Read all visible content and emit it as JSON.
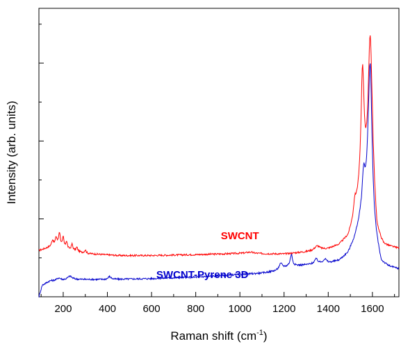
{
  "chart_data": {
    "type": "line",
    "title": "",
    "xlabel": "Raman shift (cm",
    "xlabel_sup": "-1",
    "xlabel_close": ")",
    "ylabel": "Intensity (arb. units)",
    "xlim": [
      90,
      1720
    ],
    "ylim": [
      0,
      1
    ],
    "x_ticks": [
      200,
      400,
      600,
      800,
      1000,
      1200,
      1400,
      1600
    ],
    "x_minor_step": 100,
    "y_major_ticks": [
      0,
      0.27,
      0.54,
      0.81
    ],
    "y_minor_step": 0.135,
    "y_tick_labels_shown": false,
    "grid": false,
    "legend": "none",
    "colors": {
      "SWCNT": "#ff0000",
      "SWCNT-Pyrene 3D": "#0000cc",
      "axes": "#000000"
    },
    "series": [
      {
        "name": "SWCNT",
        "color": "#ff0000",
        "label_at": [
          1000,
          0.2
        ],
        "baseline": [
          [
            90,
            0.16
          ],
          [
            150,
            0.175
          ],
          [
            250,
            0.16
          ],
          [
            300,
            0.15
          ],
          [
            450,
            0.143
          ],
          [
            600,
            0.143
          ],
          [
            800,
            0.146
          ],
          [
            1000,
            0.15
          ],
          [
            1200,
            0.148
          ],
          [
            1300,
            0.155
          ],
          [
            1400,
            0.165
          ],
          [
            1450,
            0.178
          ],
          [
            1490,
            0.205
          ],
          [
            1510,
            0.25
          ],
          [
            1530,
            0.31
          ],
          [
            1560,
            0.39
          ],
          [
            1600,
            0.36
          ],
          [
            1620,
            0.2
          ],
          [
            1650,
            0.17
          ],
          [
            1720,
            0.165
          ]
        ],
        "peaks": [
          [
            1555,
            0.38,
            8
          ],
          [
            1590,
            0.52,
            11
          ],
          [
            1520,
            0.04,
            6
          ],
          [
            1350,
            0.015,
            14
          ],
          [
            152,
            0.02,
            5
          ],
          [
            168,
            0.03,
            5
          ],
          [
            183,
            0.05,
            5
          ],
          [
            200,
            0.035,
            4
          ],
          [
            215,
            0.025,
            4
          ],
          [
            240,
            0.02,
            4
          ],
          [
            262,
            0.013,
            4
          ],
          [
            300,
            0.012,
            5
          ],
          [
            1045,
            0.005,
            20
          ]
        ]
      },
      {
        "name": "SWCNT-Pyrene 3D",
        "color": "#0000cc",
        "label_at": [
          830,
          0.065
        ],
        "baseline": [
          [
            90,
            0.0
          ],
          [
            105,
            0.04
          ],
          [
            140,
            0.055
          ],
          [
            250,
            0.06
          ],
          [
            400,
            0.06
          ],
          [
            600,
            0.063
          ],
          [
            800,
            0.068
          ],
          [
            1000,
            0.077
          ],
          [
            1100,
            0.082
          ],
          [
            1170,
            0.09
          ],
          [
            1220,
            0.105
          ],
          [
            1300,
            0.11
          ],
          [
            1400,
            0.115
          ],
          [
            1450,
            0.125
          ],
          [
            1490,
            0.15
          ],
          [
            1520,
            0.2
          ],
          [
            1550,
            0.28
          ],
          [
            1580,
            0.34
          ],
          [
            1610,
            0.2
          ],
          [
            1640,
            0.11
          ],
          [
            1680,
            0.1
          ],
          [
            1720,
            0.095
          ]
        ],
        "peaks": [
          [
            1590,
            0.51,
            10
          ],
          [
            1560,
            0.11,
            7
          ],
          [
            1233,
            0.04,
            6
          ],
          [
            1185,
            0.02,
            10
          ],
          [
            1345,
            0.017,
            10
          ],
          [
            1385,
            0.015,
            10
          ],
          [
            410,
            0.01,
            8
          ],
          [
            230,
            0.012,
            12
          ],
          [
            180,
            0.008,
            10
          ]
        ]
      }
    ]
  }
}
